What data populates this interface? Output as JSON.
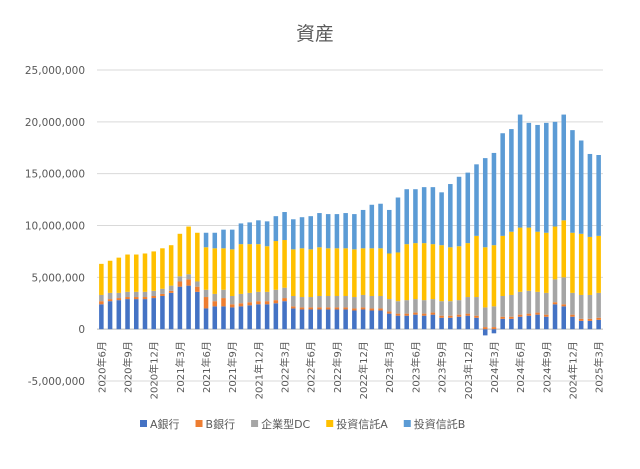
{
  "chart_data": {
    "type": "bar",
    "stacked": true,
    "title": "資産",
    "xlabel": "",
    "ylabel": "",
    "ylim": [
      -5000000,
      25000000
    ],
    "ytick_labels": [
      "-5,000,000",
      "0",
      "5,000,000",
      "10,000,000",
      "15,000,000",
      "20,000,000",
      "25,000,000"
    ],
    "grid": true,
    "legend_position": "bottom",
    "categories": [
      "2020年6月",
      "2020年7月",
      "2020年8月",
      "2020年9月",
      "2020年10月",
      "2020年11月",
      "2020年12月",
      "2021年1月",
      "2021年2月",
      "2021年3月",
      "2021年4月",
      "2021年5月",
      "2021年6月",
      "2021年7月",
      "2021年8月",
      "2021年9月",
      "2021年10月",
      "2021年11月",
      "2021年12月",
      "2022年1月",
      "2022年2月",
      "2022年3月",
      "2022年4月",
      "2022年5月",
      "2022年6月",
      "2022年7月",
      "2022年8月",
      "2022年9月",
      "2022年10月",
      "2022年11月",
      "2022年12月",
      "2023年1月",
      "2023年2月",
      "2023年3月",
      "2023年4月",
      "2023年5月",
      "2023年6月",
      "2023年7月",
      "2023年8月",
      "2023年9月",
      "2023年10月",
      "2023年11月",
      "2023年12月",
      "2024年1月",
      "2024年2月",
      "2024年3月",
      "2024年4月",
      "2024年5月",
      "2024年6月",
      "2024年7月",
      "2024年8月",
      "2024年9月",
      "2024年10月",
      "2024年11月",
      "2024年12月",
      "2025年1月",
      "2025年2月",
      "2025年3月"
    ],
    "visible_xtick_labels": [
      "2020年6月",
      "2020年9月",
      "2020年12月",
      "2021年3月",
      "2021年6月",
      "2021年9月",
      "2021年12月",
      "2022年3月",
      "2022年6月",
      "2022年9月",
      "2022年12月",
      "2023年3月",
      "2023年6月",
      "2023年9月",
      "2023年12月",
      "2024年3月",
      "2024年6月",
      "2024年9月",
      "2024年12月",
      "2025年3月"
    ],
    "series": [
      {
        "name": "A銀行",
        "color": "#4472C4",
        "values": [
          2400000,
          2700000,
          2800000,
          2900000,
          2900000,
          2900000,
          3000000,
          3200000,
          3500000,
          4100000,
          4200000,
          3600000,
          2000000,
          2200000,
          2200000,
          2100000,
          2200000,
          2300000,
          2400000,
          2400000,
          2500000,
          2700000,
          2000000,
          1900000,
          1900000,
          1900000,
          1900000,
          1900000,
          1900000,
          1800000,
          1900000,
          1800000,
          1800000,
          1500000,
          1300000,
          1300000,
          1400000,
          1300000,
          1400000,
          1100000,
          1100000,
          1200000,
          1300000,
          1100000,
          -600000,
          -400000,
          1000000,
          1000000,
          1200000,
          1300000,
          1400000,
          1200000,
          2400000,
          2200000,
          1200000,
          800000,
          800000,
          900000
        ]
      },
      {
        "name": "B銀行",
        "color": "#ED7D31",
        "values": [
          300000,
          200000,
          200000,
          200000,
          200000,
          200000,
          200000,
          200000,
          200000,
          500000,
          600000,
          500000,
          1100000,
          500000,
          800000,
          300000,
          300000,
          300000,
          300000,
          300000,
          300000,
          300000,
          200000,
          200000,
          200000,
          200000,
          200000,
          200000,
          200000,
          200000,
          200000,
          200000,
          200000,
          200000,
          200000,
          200000,
          200000,
          200000,
          200000,
          200000,
          200000,
          200000,
          200000,
          200000,
          200000,
          200000,
          200000,
          200000,
          200000,
          200000,
          200000,
          200000,
          200000,
          200000,
          200000,
          200000,
          200000,
          200000
        ]
      },
      {
        "name": "企業型DC",
        "color": "#A5A5A5",
        "values": [
          600000,
          600000,
          500000,
          500000,
          500000,
          500000,
          500000,
          500000,
          500000,
          500000,
          500000,
          500000,
          700000,
          700000,
          800000,
          800000,
          900000,
          900000,
          900000,
          900000,
          1000000,
          1000000,
          1000000,
          1000000,
          1000000,
          1100000,
          1100000,
          1100000,
          1100000,
          1100000,
          1200000,
          1200000,
          1200000,
          1200000,
          1200000,
          1300000,
          1300000,
          1300000,
          1300000,
          1400000,
          1400000,
          1400000,
          1600000,
          1800000,
          1900000,
          2000000,
          2000000,
          2100000,
          2200000,
          2200000,
          2000000,
          2100000,
          2200000,
          2600000,
          2100000,
          2300000,
          2300000,
          2400000
        ]
      },
      {
        "name": "投資信託A",
        "color": "#FFC000",
        "values": [
          3000000,
          3100000,
          3400000,
          3600000,
          3600000,
          3700000,
          3800000,
          3900000,
          3900000,
          4100000,
          4600000,
          4700000,
          4100000,
          4400000,
          4000000,
          4500000,
          4800000,
          4700000,
          4600000,
          4400000,
          4700000,
          4600000,
          4500000,
          4700000,
          4600000,
          4700000,
          4600000,
          4600000,
          4600000,
          4600000,
          4500000,
          4600000,
          4600000,
          4400000,
          4700000,
          5400000,
          5400000,
          5500000,
          5300000,
          5400000,
          5200000,
          5200000,
          5200000,
          5900000,
          5800000,
          5900000,
          5800000,
          6100000,
          6200000,
          6100000,
          5800000,
          5800000,
          5100000,
          5500000,
          5800000,
          5900000,
          5600000,
          5500000
        ]
      },
      {
        "name": "投資信託B",
        "color": "#5B9BD5",
        "values": [
          0,
          0,
          0,
          0,
          0,
          0,
          0,
          0,
          0,
          0,
          0,
          0,
          1400000,
          1500000,
          1800000,
          1900000,
          2000000,
          2100000,
          2300000,
          2400000,
          2400000,
          2700000,
          2900000,
          3000000,
          3200000,
          3300000,
          3300000,
          3300000,
          3400000,
          3400000,
          3700000,
          4200000,
          4300000,
          4200000,
          5300000,
          5300000,
          5200000,
          5400000,
          5500000,
          5100000,
          6100000,
          6700000,
          6800000,
          6900000,
          8600000,
          8900000,
          9900000,
          9900000,
          10900000,
          10100000,
          10300000,
          10600000,
          10100000,
          10200000,
          9900000,
          9000000,
          8000000,
          7800000
        ]
      }
    ]
  }
}
